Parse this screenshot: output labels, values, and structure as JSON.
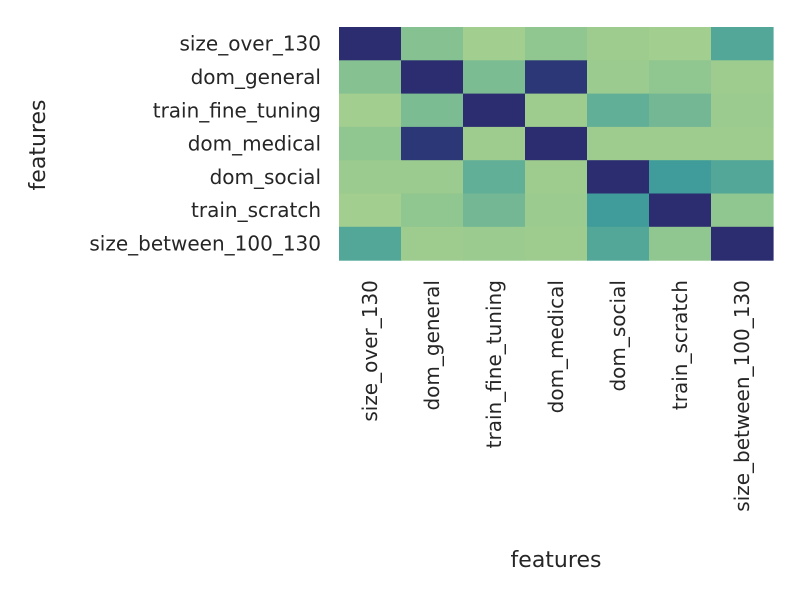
{
  "chart_data": {
    "type": "heatmap",
    "xlabel": "features",
    "ylabel": "features",
    "x_categories": [
      "size_over_130",
      "dom_general",
      "train_fine_tuning",
      "dom_medical",
      "dom_social",
      "train_scratch",
      "size_between_100_130"
    ],
    "y_categories": [
      "size_over_130",
      "dom_general",
      "train_fine_tuning",
      "dom_medical",
      "dom_social",
      "train_scratch",
      "size_between_100_130"
    ],
    "colormap": "crest",
    "colors": [
      "#a5cf8f",
      "#97c98e",
      "#6db496",
      "#4ba49a",
      "#34939b",
      "#287c96",
      "#2b3b78",
      "#2c2d70"
    ],
    "values": [
      [
        1.0,
        -0.2,
        -0.45,
        -0.25,
        -0.4,
        -0.45,
        0.1
      ],
      [
        -0.2,
        1.0,
        -0.15,
        0.85,
        -0.35,
        -0.25,
        -0.4
      ],
      [
        -0.45,
        -0.15,
        1.0,
        -0.4,
        0.0,
        -0.1,
        -0.35
      ],
      [
        -0.25,
        0.85,
        -0.4,
        1.0,
        -0.4,
        -0.4,
        -0.38
      ],
      [
        -0.35,
        -0.35,
        0.0,
        -0.4,
        1.0,
        0.25,
        0.1
      ],
      [
        -0.45,
        -0.25,
        -0.1,
        -0.35,
        0.25,
        1.0,
        -0.25
      ],
      [
        0.1,
        -0.4,
        -0.35,
        -0.4,
        0.1,
        -0.25,
        1.0
      ]
    ],
    "vmin": -0.5,
    "vmax": 1.0,
    "grid": false,
    "legend": "none"
  }
}
